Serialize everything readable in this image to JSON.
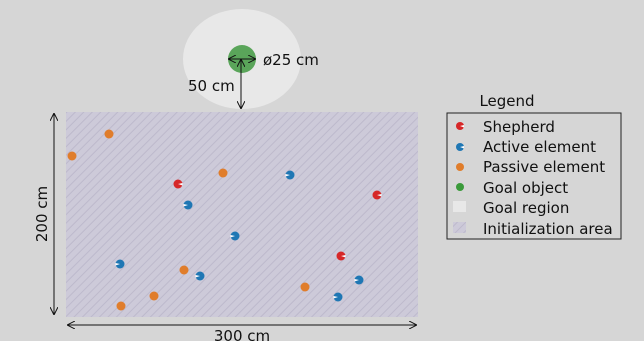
{
  "annotations": {
    "goal_diameter": "ø25 cm",
    "goal_distance": "50 cm",
    "area_height": "200 cm",
    "area_width": "300 cm"
  },
  "legend": {
    "title": "Legend",
    "items": [
      {
        "label": "Shepherd",
        "marker": "shepherd",
        "color": "#d62728"
      },
      {
        "label": "Active element",
        "marker": "active",
        "color": "#1f77b4"
      },
      {
        "label": "Passive element",
        "marker": "passive",
        "color": "#ff7f0e"
      },
      {
        "label": "Goal object",
        "marker": "goal",
        "color": "#2ca02c"
      },
      {
        "label": "Goal region",
        "marker": "region",
        "color": "#e8e8e8"
      },
      {
        "label": "Initialization area",
        "marker": "area",
        "color": "#c9c6d6"
      }
    ]
  },
  "colors": {
    "background": "#d6d6d6",
    "shepherd": "#d62728",
    "active": "#1f77b4",
    "passive": "#e07d2b",
    "goal": "#5aa55a",
    "goal_region": "#e8e8e8",
    "init_area": "#cbc8d8"
  }
}
